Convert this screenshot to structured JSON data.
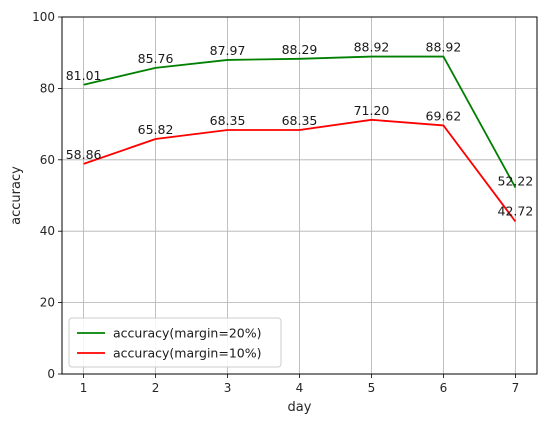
{
  "chart_data": {
    "type": "line",
    "x": [
      1,
      2,
      3,
      4,
      5,
      6,
      7
    ],
    "xlabel": "day",
    "ylabel": "accuracy",
    "xlim": [
      0.7,
      7.3
    ],
    "ylim": [
      0,
      100
    ],
    "xticks": [
      "1",
      "2",
      "3",
      "4",
      "5",
      "6",
      "7"
    ],
    "yticks": [
      "0",
      "20",
      "40",
      "60",
      "80",
      "100"
    ],
    "grid": true,
    "legend_position": "lower-left",
    "series": [
      {
        "name": "accuracy(margin=20%)",
        "color": "#008000",
        "values": [
          81.01,
          85.76,
          87.97,
          88.29,
          88.92,
          88.92,
          52.22
        ],
        "labels": [
          "81.01",
          "85.76",
          "87.97",
          "88.29",
          "88.92",
          "88.92",
          "52.22"
        ]
      },
      {
        "name": "accuracy(margin=10%)",
        "color": "#ff0000",
        "values": [
          58.86,
          65.82,
          68.35,
          68.35,
          71.2,
          69.62,
          42.72
        ],
        "labels": [
          "58.86",
          "65.82",
          "68.35",
          "68.35",
          "71.20",
          "69.62",
          "42.72"
        ]
      }
    ]
  }
}
